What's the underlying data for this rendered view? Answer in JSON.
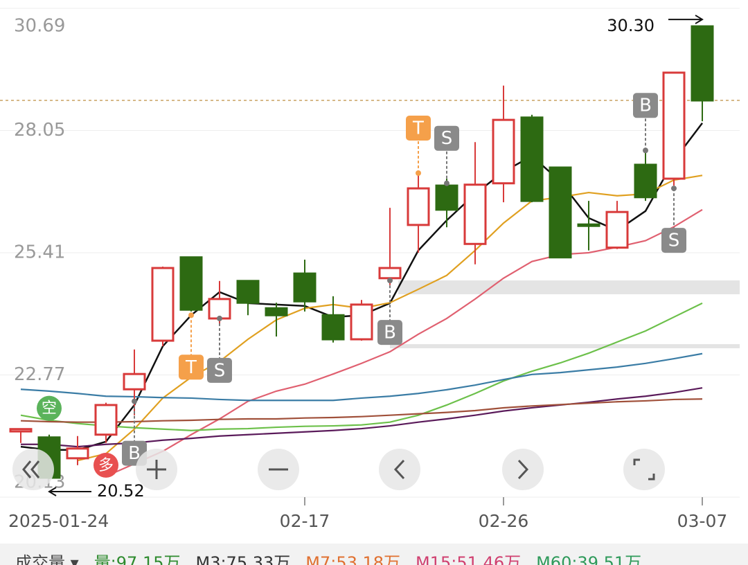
{
  "chart_data": {
    "type": "candlestick",
    "ylim": [
      20.13,
      30.69
    ],
    "yticks": [
      20.13,
      22.77,
      25.41,
      28.05,
      30.69
    ],
    "grid": true,
    "categories": [
      "2025-01-24",
      null,
      null,
      null,
      null,
      null,
      null,
      null,
      null,
      null,
      "02-17",
      null,
      null,
      null,
      null,
      null,
      null,
      "02-26",
      null,
      null,
      null,
      null,
      null,
      null,
      "03-07"
    ],
    "up_color": "#d83a3a",
    "down_color": "#2d6a12",
    "open": [
      21.55,
      21.42,
      20.97,
      21.48,
      22.46,
      23.51,
      25.31,
      23.99,
      24.8,
      24.21,
      24.96,
      24.06,
      23.54,
      24.86,
      26.01,
      26.86,
      25.6,
      26.91,
      28.33,
      27.25,
      26.02,
      25.52,
      27.31,
      27.01,
      30.3
    ],
    "high": [
      21.6,
      21.48,
      21.45,
      22.17,
      23.32,
      25.11,
      25.31,
      24.8,
      24.8,
      24.33,
      25.26,
      24.47,
      24.39,
      26.38,
      27.16,
      27.01,
      27.8,
      29.02,
      28.39,
      27.25,
      26.53,
      26.53,
      27.65,
      29.3,
      30.3
    ],
    "low": [
      21.3,
      20.52,
      20.82,
      21.3,
      21.9,
      23.39,
      24.14,
      23.84,
      24.06,
      23.6,
      24.14,
      23.47,
      23.51,
      24.71,
      25.41,
      25.96,
      25.16,
      26.5,
      26.5,
      25.31,
      25.46,
      25.49,
      26.53,
      26.86,
      28.25
    ],
    "close": [
      21.6,
      20.55,
      21.18,
      22.12,
      22.79,
      25.08,
      24.18,
      24.41,
      24.33,
      24.06,
      24.36,
      23.54,
      24.29,
      25.08,
      26.8,
      26.34,
      26.88,
      28.28,
      26.53,
      25.31,
      26.01,
      26.29,
      26.61,
      29.3,
      28.7
    ],
    "series": [
      {
        "color": "#111111",
        "values": [
          21.22,
          21.15,
          21.15,
          21.33,
          22.12,
          23.39,
          24.06,
          24.56,
          24.32,
          24.29,
          24.26,
          24.02,
          24.06,
          24.32,
          25.46,
          26.11,
          26.68,
          27.16,
          27.5,
          26.95,
          26.16,
          25.89,
          26.31,
          27.4,
          28.21
        ]
      },
      {
        "color": "#e0a020",
        "values": [
          null,
          null,
          20.92,
          21.07,
          21.6,
          22.27,
          22.72,
          23.06,
          23.54,
          23.96,
          24.21,
          24.29,
          24.21,
          24.33,
          24.62,
          24.92,
          25.46,
          26.05,
          26.53,
          26.61,
          26.71,
          26.64,
          26.68,
          26.98,
          27.08
        ]
      },
      {
        "color": "#e06070",
        "values": [
          null,
          null,
          null,
          20.58,
          20.85,
          21.12,
          21.48,
          21.82,
          22.2,
          22.42,
          22.57,
          22.79,
          23.02,
          23.27,
          23.65,
          23.99,
          24.41,
          24.86,
          25.22,
          25.37,
          25.41,
          25.53,
          25.67,
          25.97,
          26.34
        ]
      },
      {
        "color": "#6cc04a",
        "values": [
          21.9,
          21.79,
          21.72,
          21.67,
          21.63,
          21.6,
          21.57,
          21.6,
          21.61,
          21.64,
          21.66,
          21.67,
          21.69,
          21.75,
          21.9,
          22.12,
          22.37,
          22.64,
          22.85,
          23.03,
          23.24,
          23.48,
          23.72,
          24.02,
          24.32
        ]
      },
      {
        "color": "#3a7ca5",
        "values": [
          22.46,
          22.42,
          22.37,
          22.31,
          22.3,
          22.28,
          22.27,
          22.24,
          22.22,
          22.22,
          22.22,
          22.22,
          22.27,
          22.31,
          22.37,
          22.45,
          22.55,
          22.67,
          22.78,
          22.82,
          22.88,
          22.94,
          23.02,
          23.12,
          23.23
        ]
      },
      {
        "color": "#5a1a5a",
        "values": [
          21.27,
          21.27,
          21.22,
          21.27,
          21.3,
          21.36,
          21.4,
          21.45,
          21.48,
          21.51,
          21.54,
          21.57,
          21.61,
          21.67,
          21.75,
          21.82,
          21.9,
          21.99,
          22.06,
          22.12,
          22.18,
          22.25,
          22.31,
          22.39,
          22.49
        ]
      },
      {
        "color": "#a0503a",
        "values": [
          21.78,
          21.76,
          21.75,
          21.75,
          21.76,
          21.78,
          21.79,
          21.81,
          21.82,
          21.82,
          21.84,
          21.85,
          21.87,
          21.9,
          21.93,
          21.96,
          22.0,
          22.06,
          22.1,
          22.13,
          22.16,
          22.19,
          22.21,
          22.24,
          22.25
        ]
      }
    ],
    "signals": [
      {
        "label": "空",
        "index": 1,
        "value": 22.05,
        "shape": "circle",
        "color": "#5bb35b"
      },
      {
        "label": "多",
        "index": 3,
        "value": 20.82,
        "shape": "circle",
        "color": "#e85050"
      },
      {
        "label": "B",
        "index": 4,
        "value": 22.2,
        "position": "below",
        "color": "#8a8a8a"
      },
      {
        "label": "T",
        "index": 6,
        "value": 24.06,
        "position": "below",
        "color": "#f5a04a"
      },
      {
        "label": "S",
        "index": 7,
        "value": 23.99,
        "position": "below",
        "color": "#8a8a8a"
      },
      {
        "label": "B",
        "index": 13,
        "value": 24.81,
        "position": "below",
        "color": "#8a8a8a"
      },
      {
        "label": "T",
        "index": 14,
        "value": 27.13,
        "position": "above",
        "color": "#f5a04a"
      },
      {
        "label": "S",
        "index": 15,
        "value": 26.91,
        "position": "above",
        "color": "#8a8a8a"
      },
      {
        "label": "B",
        "index": 22,
        "value": 27.62,
        "position": "above",
        "color": "#8a8a8a"
      },
      {
        "label": "S",
        "index": 23,
        "value": 26.8,
        "position": "below",
        "color": "#8a8a8a"
      }
    ],
    "annotations": [
      {
        "text": "30.30",
        "index": 24
      },
      {
        "text": "20.52",
        "index": 1
      }
    ],
    "volume_legend": [
      {
        "text": "成交量 ▾",
        "color": "#444444"
      },
      {
        "text": "量:97.15万",
        "color": "#2e8b2e"
      },
      {
        "text": "M3:75.33万",
        "color": "#333333"
      },
      {
        "text": "M7:53.18万",
        "color": "#e07030"
      },
      {
        "text": "M15:51.46万",
        "color": "#d04070"
      },
      {
        "text": "M60:39.51万",
        "color": "#2e9a5a"
      }
    ]
  }
}
